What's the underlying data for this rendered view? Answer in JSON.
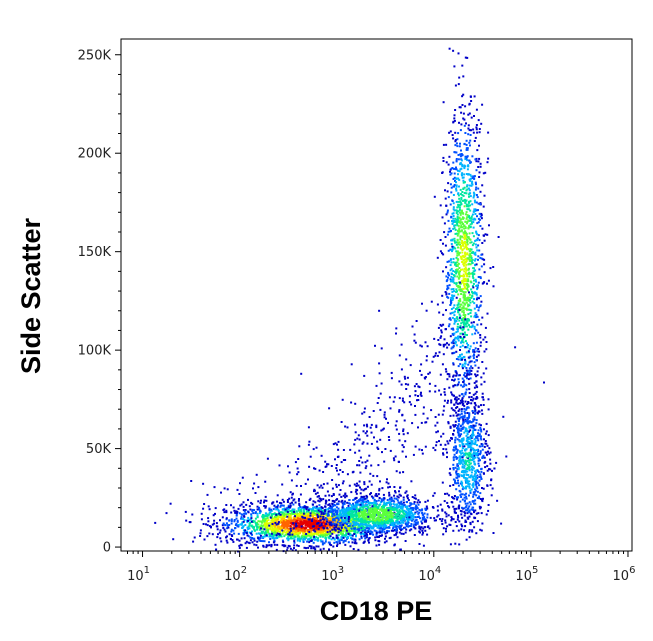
{
  "chart_data": {
    "type": "scatter",
    "title": "",
    "xlabel": "CD18 PE",
    "ylabel": "Side Scatter",
    "x_scale": "log",
    "xlim": [
      6,
      1100000
    ],
    "ylim": [
      -2000,
      258000
    ],
    "x_ticks": [
      {
        "value": 10,
        "base": "10",
        "exp": "1"
      },
      {
        "value": 100,
        "base": "10",
        "exp": "2"
      },
      {
        "value": 1000,
        "base": "10",
        "exp": "3"
      },
      {
        "value": 10000,
        "base": "10",
        "exp": "4"
      },
      {
        "value": 100000,
        "base": "10",
        "exp": "5"
      },
      {
        "value": 1000000,
        "base": "10",
        "exp": "6"
      }
    ],
    "y_ticks": [
      {
        "value": 0,
        "label": "0"
      },
      {
        "value": 50000,
        "label": "50K"
      },
      {
        "value": 100000,
        "label": "100K"
      },
      {
        "value": 150000,
        "label": "150K"
      },
      {
        "value": 200000,
        "label": "200K"
      },
      {
        "value": 250000,
        "label": "250K"
      }
    ],
    "grid": false,
    "legend": "none",
    "density_colors": [
      "#0000c8",
      "#0050ff",
      "#00b4ff",
      "#00e6a0",
      "#5aff3c",
      "#dcff00",
      "#ffc800",
      "#ff6400",
      "#e60000"
    ],
    "populations": [
      {
        "x_center": 500,
        "x_spread_decades": 0.42,
        "y_center": 12000,
        "y_spread": 5000,
        "peak_density": 1.0
      },
      {
        "x_center": 2500,
        "x_spread_decades": 0.3,
        "y_center": 17000,
        "y_spread": 5000,
        "peak_density": 0.55
      },
      {
        "x_center": 20000,
        "x_spread_decades": 0.1,
        "y_center": 145000,
        "y_spread": 38000,
        "peak_density": 0.6
      },
      {
        "x_center": 22000,
        "x_spread_decades": 0.11,
        "y_center": 45000,
        "y_spread": 18000,
        "peak_density": 0.35
      }
    ]
  }
}
